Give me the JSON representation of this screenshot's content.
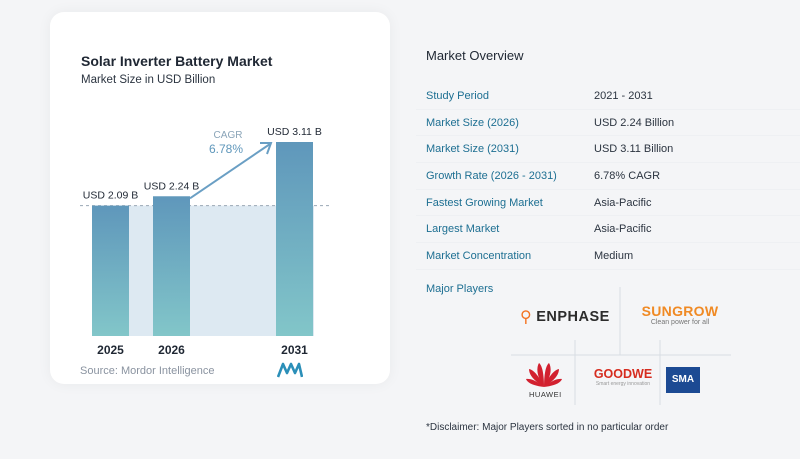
{
  "chart_data": {
    "type": "bar",
    "title": "Solar Inverter Battery Market",
    "subtitle": "Market Size in USD Billion",
    "categories": [
      "2025",
      "2026",
      "2031"
    ],
    "values": [
      2.09,
      2.24,
      3.11
    ],
    "value_labels": [
      "USD 2.09 B",
      "USD 2.24 B",
      "USD 3.11 B"
    ],
    "ylim": [
      0,
      3.11
    ],
    "cagr_label": "CAGR",
    "cagr_value": "6.78%",
    "bar_color_top": "#5f97bb",
    "bar_color_bottom": "#82c6c9",
    "band_color": "#dde9f2",
    "arrow_color": "#6a9fc4"
  },
  "source": "Source: Mordor Intelligence",
  "overview": {
    "title": "Market Overview",
    "rows": [
      {
        "label": "Study Period",
        "value": "2021 - 2031"
      },
      {
        "label": "Market Size (2026)",
        "value": "USD 2.24 Billion"
      },
      {
        "label": "Market Size (2031)",
        "value": "USD 3.11 Billion"
      },
      {
        "label": "Growth Rate (2026 - 2031)",
        "value": "6.78% CAGR"
      },
      {
        "label": "Fastest Growing Market",
        "value": "Asia-Pacific"
      },
      {
        "label": "Largest Market",
        "value": "Asia-Pacific"
      },
      {
        "label": "Market Concentration",
        "value": "Medium"
      }
    ],
    "players_title": "Major Players",
    "players": {
      "enphase": "ENPHASE",
      "sungrow": "SUNGROW",
      "sungrow_tag": "Clean power for all",
      "huawei": "HUAWEI",
      "goodwe": "GOODWE",
      "goodwe_tag": "Smart energy innovation",
      "sma": "SMA"
    },
    "disclaimer": "*Disclaimer: Major Players sorted in no particular order"
  }
}
